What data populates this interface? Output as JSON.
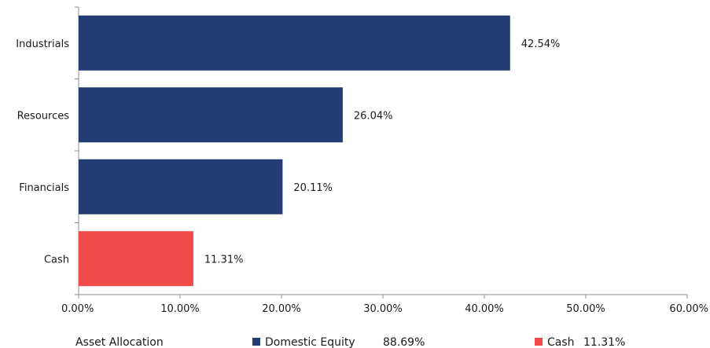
{
  "colors": {
    "domestic_equity": "#233C73",
    "cash": "#F04A4A",
    "axis": "#8c8c8c"
  },
  "chart_data": {
    "type": "bar",
    "orientation": "horizontal",
    "categories": [
      "Industrials",
      "Resources",
      "Financials",
      "Cash"
    ],
    "values": [
      42.54,
      26.04,
      20.11,
      11.31
    ],
    "value_labels": [
      "42.54%",
      "26.04%",
      "20.11%",
      "11.31%"
    ],
    "bar_groups": [
      "domestic_equity",
      "domestic_equity",
      "domestic_equity",
      "cash"
    ],
    "xlim": [
      0,
      60
    ],
    "x_ticks": [
      0,
      10,
      20,
      30,
      40,
      50,
      60
    ],
    "x_tick_labels": [
      "0.00%",
      "10.00%",
      "20.00%",
      "30.00%",
      "40.00%",
      "50.00%",
      "60.00%"
    ],
    "grid": false,
    "legend_placement": "bottom"
  },
  "legend": {
    "title": "Asset Allocation",
    "items": [
      {
        "key": "domestic_equity",
        "label": "Domestic Equity",
        "value": "88.69%"
      },
      {
        "key": "cash",
        "label": "Cash",
        "value": "11.31%"
      }
    ]
  }
}
